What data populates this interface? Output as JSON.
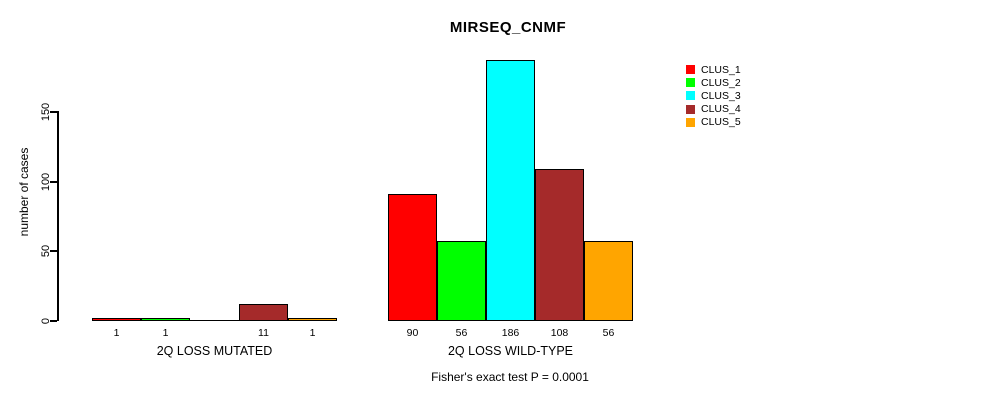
{
  "chart_data": {
    "type": "bar",
    "title": "MIRSEQ_CNMF",
    "ylabel": "number of cases",
    "yticks": [
      0,
      50,
      100,
      150
    ],
    "ylim": [
      0,
      186
    ],
    "grid": false,
    "legend_position": "right",
    "categories": [
      "CLUS_1",
      "CLUS_2",
      "CLUS_3",
      "CLUS_4",
      "CLUS_5"
    ],
    "colors": [
      "#FF0000",
      "#00FF00",
      "#00FFFF",
      "#A52A2A",
      "#FFA500"
    ],
    "groups": [
      {
        "label": "2Q LOSS MUTATED",
        "values": [
          1,
          1,
          0,
          11,
          1
        ],
        "bar_labels": [
          "1",
          "1",
          "",
          "11",
          "1"
        ]
      },
      {
        "label": "2Q LOSS WILD-TYPE",
        "values": [
          90,
          56,
          186,
          108,
          56
        ],
        "bar_labels": [
          "90",
          "56",
          "186",
          "108",
          "56"
        ]
      }
    ],
    "footnote": "Fisher's exact test P = 0.0001"
  },
  "legend": {
    "entries": [
      {
        "label": "CLUS_1",
        "color": "#FF0000"
      },
      {
        "label": "CLUS_2",
        "color": "#00FF00"
      },
      {
        "label": "CLUS_3",
        "color": "#00FFFF"
      },
      {
        "label": "CLUS_4",
        "color": "#A52A2A"
      },
      {
        "label": "CLUS_5",
        "color": "#FFA500"
      }
    ]
  }
}
